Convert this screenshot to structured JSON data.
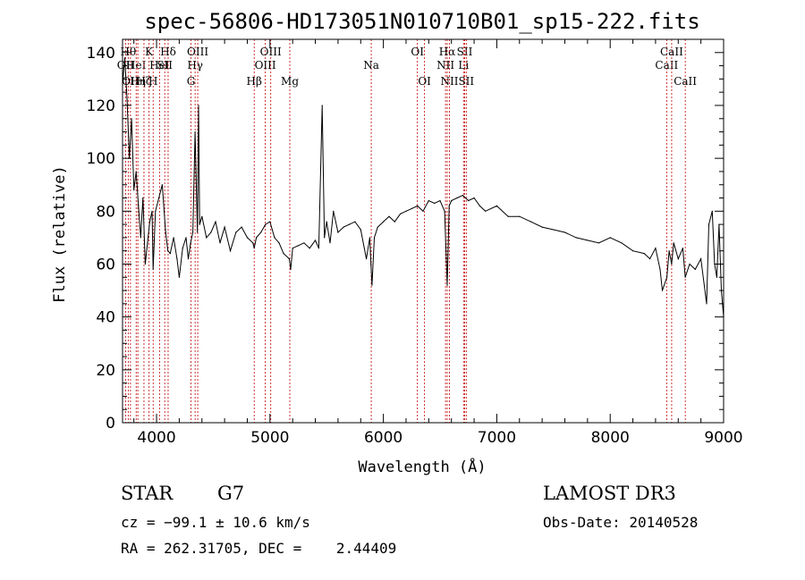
{
  "chart_data": {
    "type": "line",
    "title": "spec-56806-HD173051N010710B01_sp15-222.fits",
    "xlabel": "Wavelength (Å)",
    "ylabel": "Flux (relative)",
    "xlim": [
      3700,
      9000
    ],
    "ylim": [
      0,
      145
    ],
    "xticks": [
      4000,
      5000,
      6000,
      7000,
      8000,
      9000
    ],
    "yticks": [
      0,
      20,
      40,
      60,
      80,
      100,
      120,
      140
    ],
    "series": [
      {
        "name": "flux",
        "x": [
          3700,
          3720,
          3740,
          3760,
          3780,
          3800,
          3820,
          3840,
          3860,
          3880,
          3900,
          3920,
          3940,
          3960,
          3970,
          3990,
          4020,
          4050,
          4080,
          4100,
          4120,
          4150,
          4180,
          4200,
          4230,
          4260,
          4280,
          4300,
          4320,
          4340,
          4360,
          4370,
          4380,
          4400,
          4440,
          4480,
          4520,
          4560,
          4600,
          4650,
          4700,
          4750,
          4800,
          4850,
          4861,
          4880,
          4920,
          4960,
          5000,
          5040,
          5080,
          5120,
          5170,
          5183,
          5200,
          5250,
          5300,
          5350,
          5400,
          5430,
          5460,
          5480,
          5500,
          5530,
          5560,
          5600,
          5650,
          5700,
          5750,
          5800,
          5850,
          5880,
          5890,
          5900,
          5920,
          5950,
          6000,
          6050,
          6100,
          6150,
          6200,
          6250,
          6300,
          6350,
          6400,
          6450,
          6500,
          6540,
          6563,
          6580,
          6600,
          6650,
          6700,
          6750,
          6800,
          6850,
          6900,
          7000,
          7100,
          7200,
          7300,
          7400,
          7500,
          7600,
          7700,
          7800,
          7900,
          8000,
          8100,
          8200,
          8300,
          8350,
          8400,
          8440,
          8460,
          8500,
          8520,
          8542,
          8560,
          8600,
          8640,
          8662,
          8700,
          8750,
          8800,
          8850,
          8870,
          8900,
          8920,
          8940,
          8960,
          8980,
          9000
        ],
        "y": [
          128,
          138,
          122,
          100,
          115,
          88,
          95,
          82,
          70,
          85,
          60,
          68,
          76,
          80,
          58,
          80,
          85,
          90,
          72,
          65,
          64,
          70,
          62,
          55,
          66,
          70,
          62,
          68,
          72,
          110,
          72,
          120,
          75,
          78,
          70,
          72,
          76,
          68,
          74,
          65,
          72,
          74,
          70,
          68,
          66,
          70,
          72,
          75,
          76,
          70,
          68,
          64,
          62,
          58,
          66,
          67,
          68,
          66,
          69,
          66,
          120,
          70,
          76,
          68,
          80,
          72,
          74,
          75,
          76,
          73,
          62,
          70,
          60,
          52,
          70,
          74,
          76,
          78,
          76,
          79,
          80,
          81,
          82,
          80,
          84,
          83,
          84,
          80,
          52,
          82,
          84,
          85,
          86,
          84,
          85,
          82,
          80,
          82,
          78,
          78,
          76,
          74,
          73,
          72,
          70,
          69,
          68,
          70,
          68,
          65,
          64,
          62,
          66,
          58,
          50,
          55,
          65,
          60,
          68,
          62,
          66,
          55,
          60,
          58,
          62,
          45,
          75,
          80,
          60,
          55,
          75,
          50,
          40
        ]
      }
    ],
    "lines": [
      {
        "wave": 3727,
        "label": "OII",
        "row": 2
      },
      {
        "wave": 3750,
        "label": "Hθ",
        "row": 1
      },
      {
        "wave": 3770,
        "label": "OII",
        "row": 3
      },
      {
        "wave": 3820,
        "label": "HeI",
        "row": 2
      },
      {
        "wave": 3835,
        "label": "Hη",
        "row": 3
      },
      {
        "wave": 3889,
        "label": "Hζ",
        "row": 3
      },
      {
        "wave": 3934,
        "label": "K",
        "row": 1
      },
      {
        "wave": 3970,
        "label": "H",
        "row": 3
      },
      {
        "wave": 4026,
        "label": "HeI",
        "row": 2
      },
      {
        "wave": 4072,
        "label": "SII",
        "row": 2
      },
      {
        "wave": 4102,
        "label": "Hδ",
        "row": 1
      },
      {
        "wave": 4304,
        "label": "G",
        "row": 3
      },
      {
        "wave": 4340,
        "label": "Hγ",
        "row": 2
      },
      {
        "wave": 4363,
        "label": "OIII",
        "row": 1
      },
      {
        "wave": 4861,
        "label": "Hβ",
        "row": 3
      },
      {
        "wave": 4959,
        "label": "OIII",
        "row": 2
      },
      {
        "wave": 5007,
        "label": "OIII",
        "row": 1
      },
      {
        "wave": 5175,
        "label": "Mg",
        "row": 3
      },
      {
        "wave": 5893,
        "label": "Na",
        "row": 2
      },
      {
        "wave": 6300,
        "label": "OI",
        "row": 1
      },
      {
        "wave": 6363,
        "label": "OI",
        "row": 3
      },
      {
        "wave": 6548,
        "label": "NII",
        "row": 2
      },
      {
        "wave": 6563,
        "label": "Hα",
        "row": 1
      },
      {
        "wave": 6583,
        "label": "NII",
        "row": 3
      },
      {
        "wave": 6707,
        "label": "Li",
        "row": 2
      },
      {
        "wave": 6717,
        "label": "SII",
        "row": 1
      },
      {
        "wave": 6731,
        "label": "SII",
        "row": 3
      },
      {
        "wave": 8498,
        "label": "CaII",
        "row": 2
      },
      {
        "wave": 8542,
        "label": "CaII",
        "row": 1
      },
      {
        "wave": 8662,
        "label": "CaII",
        "row": 3
      }
    ]
  },
  "info": {
    "object_class": "STAR",
    "subclass": "G7",
    "survey": "LAMOST DR3",
    "redshift": "cz = −99.1 ± 10.6 km/s",
    "obs_date": "Obs-Date: 20140528",
    "coords": "RA = 262.31705, DEC =    2.44409"
  },
  "colors": {
    "spectrum": "#000000",
    "line_marker": "#c00000",
    "axes": "#000000"
  }
}
